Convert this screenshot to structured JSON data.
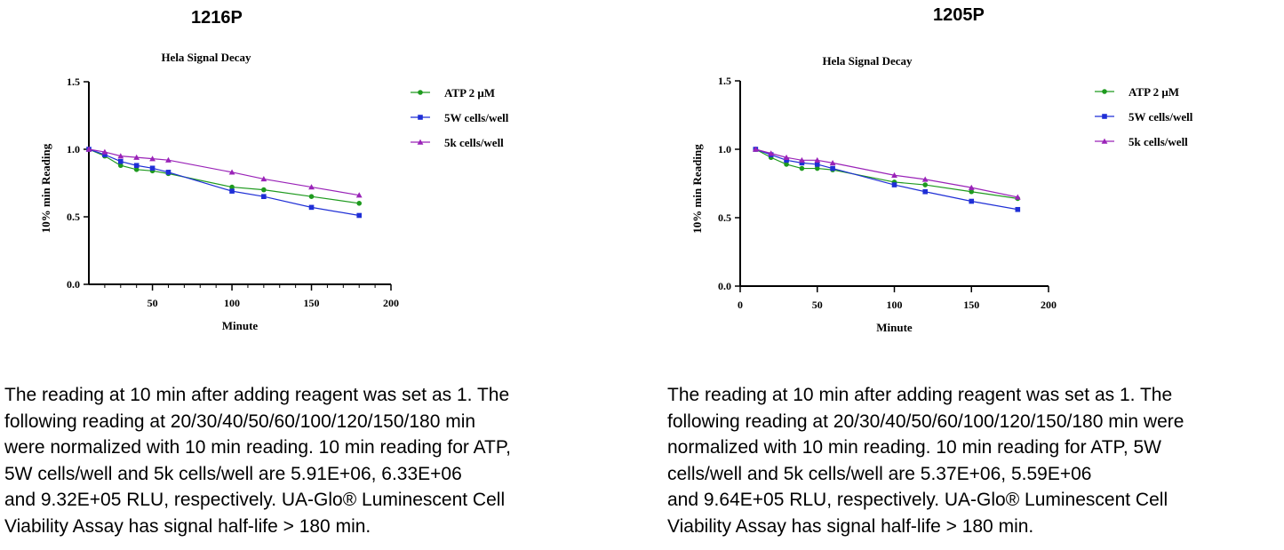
{
  "panels": [
    {
      "heading": "1216P",
      "caption": "The reading at 10 min after adding reagent was set as 1. The\nfollowing reading at 20/30/40/50/60/100/120/150/180 min\nwere normalized  with 10 min reading. 10 min reading for ATP,\n5W cells/well and 5k cells/well are 5.91E+06, 6.33E+06\nand 9.32E+05 RLU, respectively. UA-Glo® Luminescent Cell\nViability Assay has  signal half-life > 180 min."
    },
    {
      "heading": "1205P",
      "caption": "The reading at 10 min after adding reagent was set as 1. The\nfollowing reading at 20/30/40/50/60/100/120/150/180 min were\nnormalized  with 10 min reading. 10 min reading for ATP, 5W\ncells/well and 5k cells/well are 5.37E+06, 5.59E+06\nand 9.64E+05 RLU, respectively. UA-Glo® Luminescent Cell\nViability Assay has  signal half-life > 180 min."
    }
  ],
  "chart_data": [
    {
      "type": "line",
      "title": "Hela Signal Decay",
      "xlabel": "Minute",
      "ylabel": "10% min Reading",
      "xlim": [
        10,
        200
      ],
      "ylim": [
        0,
        1.5
      ],
      "xticks": [
        "50",
        "100",
        "150",
        "200"
      ],
      "yticks": [
        "0.0",
        "0.5",
        "1.0",
        "1.5"
      ],
      "x": [
        10,
        20,
        30,
        40,
        50,
        60,
        100,
        120,
        150,
        180
      ],
      "series": [
        {
          "name": "ATP 2 μM",
          "color": "#1e9a1e",
          "marker": "circle",
          "values": [
            1.0,
            0.95,
            0.88,
            0.85,
            0.84,
            0.82,
            0.72,
            0.7,
            0.65,
            0.6
          ]
        },
        {
          "name": "5W cells/well",
          "color": "#1f2fd6",
          "marker": "square",
          "values": [
            1.0,
            0.96,
            0.91,
            0.88,
            0.86,
            0.83,
            0.69,
            0.65,
            0.57,
            0.51
          ]
        },
        {
          "name": "5k cells/well",
          "color": "#9a23b8",
          "marker": "triangle",
          "values": [
            1.0,
            0.98,
            0.95,
            0.94,
            0.93,
            0.92,
            0.83,
            0.78,
            0.72,
            0.66
          ]
        }
      ]
    },
    {
      "type": "line",
      "title": "Hela Signal Decay",
      "xlabel": "Minute",
      "ylabel": "10% min Reading",
      "xlim": [
        0,
        200
      ],
      "ylim": [
        0,
        1.5
      ],
      "xticks": [
        "0",
        "50",
        "100",
        "150",
        "200"
      ],
      "yticks": [
        "0.0",
        "0.5",
        "1.0",
        "1.5"
      ],
      "x": [
        10,
        20,
        30,
        40,
        50,
        60,
        100,
        120,
        150,
        180
      ],
      "series": [
        {
          "name": "ATP 2 μM",
          "color": "#1e9a1e",
          "marker": "circle",
          "values": [
            1.0,
            0.94,
            0.89,
            0.86,
            0.86,
            0.85,
            0.76,
            0.74,
            0.69,
            0.64
          ]
        },
        {
          "name": "5W cells/well",
          "color": "#1f2fd6",
          "marker": "square",
          "values": [
            1.0,
            0.96,
            0.92,
            0.9,
            0.89,
            0.86,
            0.74,
            0.69,
            0.62,
            0.56
          ]
        },
        {
          "name": "5k cells/well",
          "color": "#9a23b8",
          "marker": "triangle",
          "values": [
            1.0,
            0.97,
            0.94,
            0.92,
            0.92,
            0.9,
            0.81,
            0.78,
            0.72,
            0.65
          ]
        }
      ]
    }
  ]
}
